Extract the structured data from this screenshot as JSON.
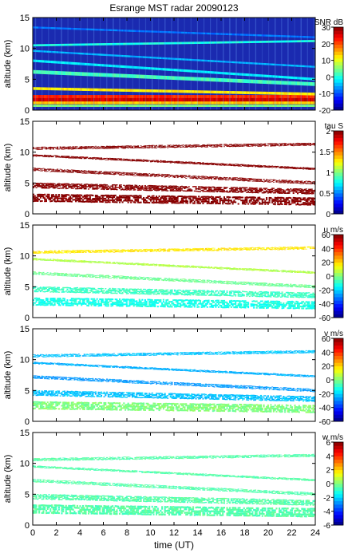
{
  "chart_data": {
    "type": "heatmap",
    "title": "Esrange MST radar 20090123",
    "xlabel": "time (UT)",
    "xlim": [
      0,
      24
    ],
    "xticks": [
      0,
      2,
      4,
      6,
      8,
      10,
      12,
      14,
      16,
      18,
      20,
      22,
      24
    ],
    "ylim": [
      0,
      15
    ],
    "yticks": [
      0,
      5,
      10,
      15
    ],
    "colormap": "jet",
    "panels": [
      {
        "id": "snr",
        "ylabel": "altitude (km)",
        "colorbar_label": "SNR dB",
        "clim": [
          -20,
          30
        ],
        "colorbar_ticks": [
          -20,
          -10,
          0,
          10,
          20,
          30
        ],
        "background": "#1a2ab0",
        "layers": [
          {
            "alt": 0.7,
            "thick": 0.35,
            "value": 5
          },
          {
            "alt": 1.2,
            "thick": 0.5,
            "value": 14
          },
          {
            "alt": 1.7,
            "thick": 0.6,
            "value": 26
          },
          {
            "alt": 2.2,
            "thick": 0.5,
            "value": 22
          },
          {
            "alt_start": 3.5,
            "alt_end": 2.6,
            "thick": 0.45,
            "value": 12
          },
          {
            "alt_start": 6.2,
            "alt_end": 4.2,
            "thick": 0.6,
            "value": 2
          },
          {
            "alt_start": 8.0,
            "alt_end": 5.0,
            "thick": 0.4,
            "value": -2
          },
          {
            "alt_start": 9.6,
            "alt_end": 7.0,
            "thick": 0.3,
            "value": -5
          },
          {
            "alt_start": 10.5,
            "alt_end": 11.2,
            "thick": 0.35,
            "value": 0
          },
          {
            "alt_start": 13.4,
            "alt_end": 11.8,
            "thick": 0.3,
            "value": -8
          }
        ]
      },
      {
        "id": "tau",
        "ylabel": "altitude (km)",
        "colorbar_label": "tau S",
        "clim": [
          0,
          2
        ],
        "colorbar_ticks": [
          0,
          0.5,
          1,
          1.5,
          2
        ],
        "value": 2,
        "layers": [
          {
            "alt_start": 2.6,
            "alt_end": 2.0,
            "thick": 1.3
          },
          {
            "alt_start": 4.6,
            "alt_end": 3.6,
            "thick": 0.9
          },
          {
            "alt_start": 7.2,
            "alt_end": 5.0,
            "thick": 0.5
          },
          {
            "alt_start": 9.5,
            "alt_end": 7.3,
            "thick": 0.3
          },
          {
            "alt_start": 10.6,
            "alt_end": 11.3,
            "thick": 0.45
          }
        ]
      },
      {
        "id": "u",
        "ylabel": "altitude (km)",
        "colorbar_label": "u m/s",
        "clim": [
          -60,
          60
        ],
        "colorbar_ticks": [
          -60,
          -40,
          -20,
          0,
          20,
          40,
          60
        ],
        "layers": [
          {
            "alt_start": 2.6,
            "alt_end": 2.0,
            "thick": 1.3,
            "value": -12
          },
          {
            "alt_start": 4.6,
            "alt_end": 3.6,
            "thick": 0.9,
            "value": -8
          },
          {
            "alt_start": 7.2,
            "alt_end": 5.0,
            "thick": 0.5,
            "value": -2
          },
          {
            "alt_start": 9.5,
            "alt_end": 7.3,
            "thick": 0.3,
            "value": 6
          },
          {
            "alt_start": 10.6,
            "alt_end": 11.3,
            "thick": 0.45,
            "value": 18
          }
        ]
      },
      {
        "id": "v",
        "ylabel": "altitude (km)",
        "colorbar_label": "v m/s",
        "clim": [
          -60,
          60
        ],
        "colorbar_ticks": [
          -60,
          -40,
          -20,
          0,
          20,
          40,
          60
        ],
        "layers": [
          {
            "alt_start": 2.6,
            "alt_end": 2.0,
            "thick": 1.3,
            "value": 0
          },
          {
            "alt_start": 4.6,
            "alt_end": 3.6,
            "thick": 0.9,
            "value": -22
          },
          {
            "alt_start": 7.2,
            "alt_end": 5.0,
            "thick": 0.5,
            "value": -27
          },
          {
            "alt_start": 9.5,
            "alt_end": 7.3,
            "thick": 0.3,
            "value": -24
          },
          {
            "alt_start": 10.6,
            "alt_end": 11.3,
            "thick": 0.45,
            "value": -22
          }
        ]
      },
      {
        "id": "w",
        "ylabel": "altitude (km)",
        "colorbar_label": "w m/s",
        "clim": [
          -6,
          6
        ],
        "colorbar_ticks": [
          -6,
          -4,
          -2,
          0,
          2,
          4,
          6
        ],
        "layers": [
          {
            "alt_start": 2.6,
            "alt_end": 2.0,
            "thick": 1.5,
            "value": -0.5
          },
          {
            "alt_start": 4.6,
            "alt_end": 3.6,
            "thick": 0.9,
            "value": -0.5
          },
          {
            "alt_start": 7.2,
            "alt_end": 5.0,
            "thick": 0.5,
            "value": -0.5
          },
          {
            "alt_start": 9.5,
            "alt_end": 7.3,
            "thick": 0.3,
            "value": -0.5
          },
          {
            "alt_start": 10.6,
            "alt_end": 11.3,
            "thick": 0.45,
            "value": -0.5
          }
        ]
      }
    ]
  }
}
